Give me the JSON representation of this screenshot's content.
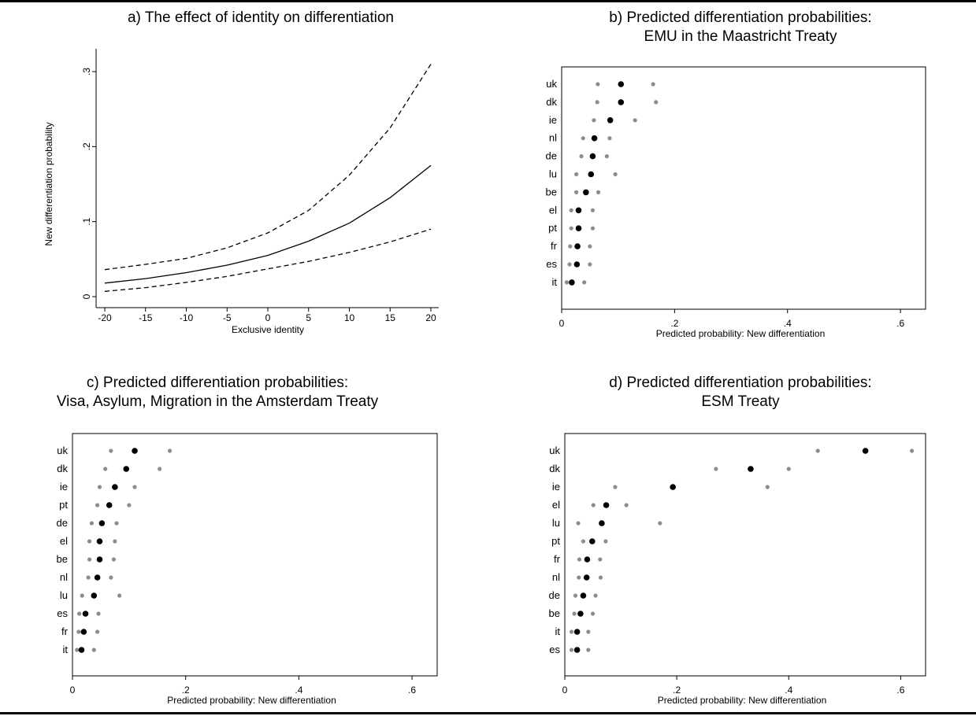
{
  "chart_data": [
    {
      "type": "line",
      "title": "a) The effect of identity on differentiation",
      "xlabel": "Exclusive identity",
      "ylabel": "New differentiation probability",
      "xlim": [
        -20,
        20
      ],
      "ylim": [
        0,
        0.3
      ],
      "xticks": [
        "-20",
        "-15",
        "-10",
        "-5",
        "0",
        "5",
        "10",
        "15",
        "20"
      ],
      "yticks": [
        ".3",
        ".2",
        ".1",
        "0"
      ],
      "grid": false,
      "x": [
        -20,
        -15,
        -10,
        -5,
        0,
        5,
        10,
        15,
        20
      ],
      "series": [
        {
          "style": "dashed",
          "values": [
            0.036,
            0.043,
            0.051,
            0.065,
            0.085,
            0.115,
            0.162,
            0.225,
            0.31
          ]
        },
        {
          "style": "solid",
          "values": [
            0.018,
            0.024,
            0.032,
            0.042,
            0.055,
            0.074,
            0.098,
            0.132,
            0.175
          ]
        },
        {
          "style": "dashed",
          "values": [
            0.007,
            0.012,
            0.019,
            0.027,
            0.037,
            0.047,
            0.059,
            0.073,
            0.09
          ]
        }
      ]
    },
    {
      "type": "scatter",
      "title": [
        "b) Predicted differentiation probabilities:",
        "EMU in the Maastricht Treaty"
      ],
      "xlabel": "Predicted probability: New differentiation",
      "xlim": [
        0,
        0.6
      ],
      "xticks": [
        "0",
        ".2",
        ".4",
        ".6"
      ],
      "grid": false,
      "categories": [
        "uk",
        "dk",
        "ie",
        "nl",
        "de",
        "lu",
        "be",
        "el",
        "pt",
        "fr",
        "es",
        "it"
      ],
      "point": [
        0.105,
        0.105,
        0.086,
        0.058,
        0.055,
        0.052,
        0.043,
        0.03,
        0.03,
        0.028,
        0.027,
        0.018
      ],
      "lower": [
        0.064,
        0.063,
        0.057,
        0.038,
        0.035,
        0.026,
        0.026,
        0.017,
        0.017,
        0.015,
        0.014,
        0.009
      ],
      "upper": [
        0.162,
        0.167,
        0.13,
        0.085,
        0.08,
        0.095,
        0.065,
        0.055,
        0.055,
        0.05,
        0.05,
        0.04
      ]
    },
    {
      "type": "scatter",
      "title": [
        "c) Predicted differentiation probabilities:",
        "Visa, Asylum, Migration in the Amsterdam Treaty"
      ],
      "xlabel": "Predicted probability: New differentiation",
      "xlim": [
        0,
        0.6
      ],
      "xticks": [
        "0",
        ".2",
        ".4",
        ".6"
      ],
      "grid": false,
      "categories": [
        "uk",
        "dk",
        "ie",
        "pt",
        "de",
        "el",
        "be",
        "nl",
        "lu",
        "es",
        "fr",
        "it"
      ],
      "point": [
        0.11,
        0.095,
        0.075,
        0.065,
        0.052,
        0.048,
        0.048,
        0.044,
        0.038,
        0.023,
        0.02,
        0.016
      ],
      "lower": [
        0.068,
        0.058,
        0.048,
        0.044,
        0.034,
        0.03,
        0.03,
        0.028,
        0.017,
        0.012,
        0.011,
        0.008
      ],
      "upper": [
        0.172,
        0.154,
        0.11,
        0.1,
        0.078,
        0.075,
        0.073,
        0.068,
        0.083,
        0.046,
        0.044,
        0.038
      ]
    },
    {
      "type": "scatter",
      "title": [
        "d) Predicted differentiation probabilities:",
        "ESM Treaty"
      ],
      "xlabel": "Predicted probability: New differentiation",
      "xlim": [
        0,
        0.6
      ],
      "xticks": [
        "0",
        ".2",
        ".4",
        ".6"
      ],
      "grid": false,
      "categories": [
        "uk",
        "dk",
        "ie",
        "el",
        "lu",
        "pt",
        "fr",
        "nl",
        "de",
        "be",
        "it",
        "es"
      ],
      "point": [
        0.537,
        0.332,
        0.193,
        0.074,
        0.066,
        0.049,
        0.04,
        0.039,
        0.033,
        0.028,
        0.022,
        0.022
      ],
      "lower": [
        0.452,
        0.27,
        0.09,
        0.051,
        0.024,
        0.033,
        0.026,
        0.025,
        0.019,
        0.017,
        0.012,
        0.012
      ],
      "upper": [
        0.62,
        0.4,
        0.362,
        0.11,
        0.17,
        0.073,
        0.063,
        0.064,
        0.055,
        0.05,
        0.042,
        0.042
      ]
    }
  ]
}
